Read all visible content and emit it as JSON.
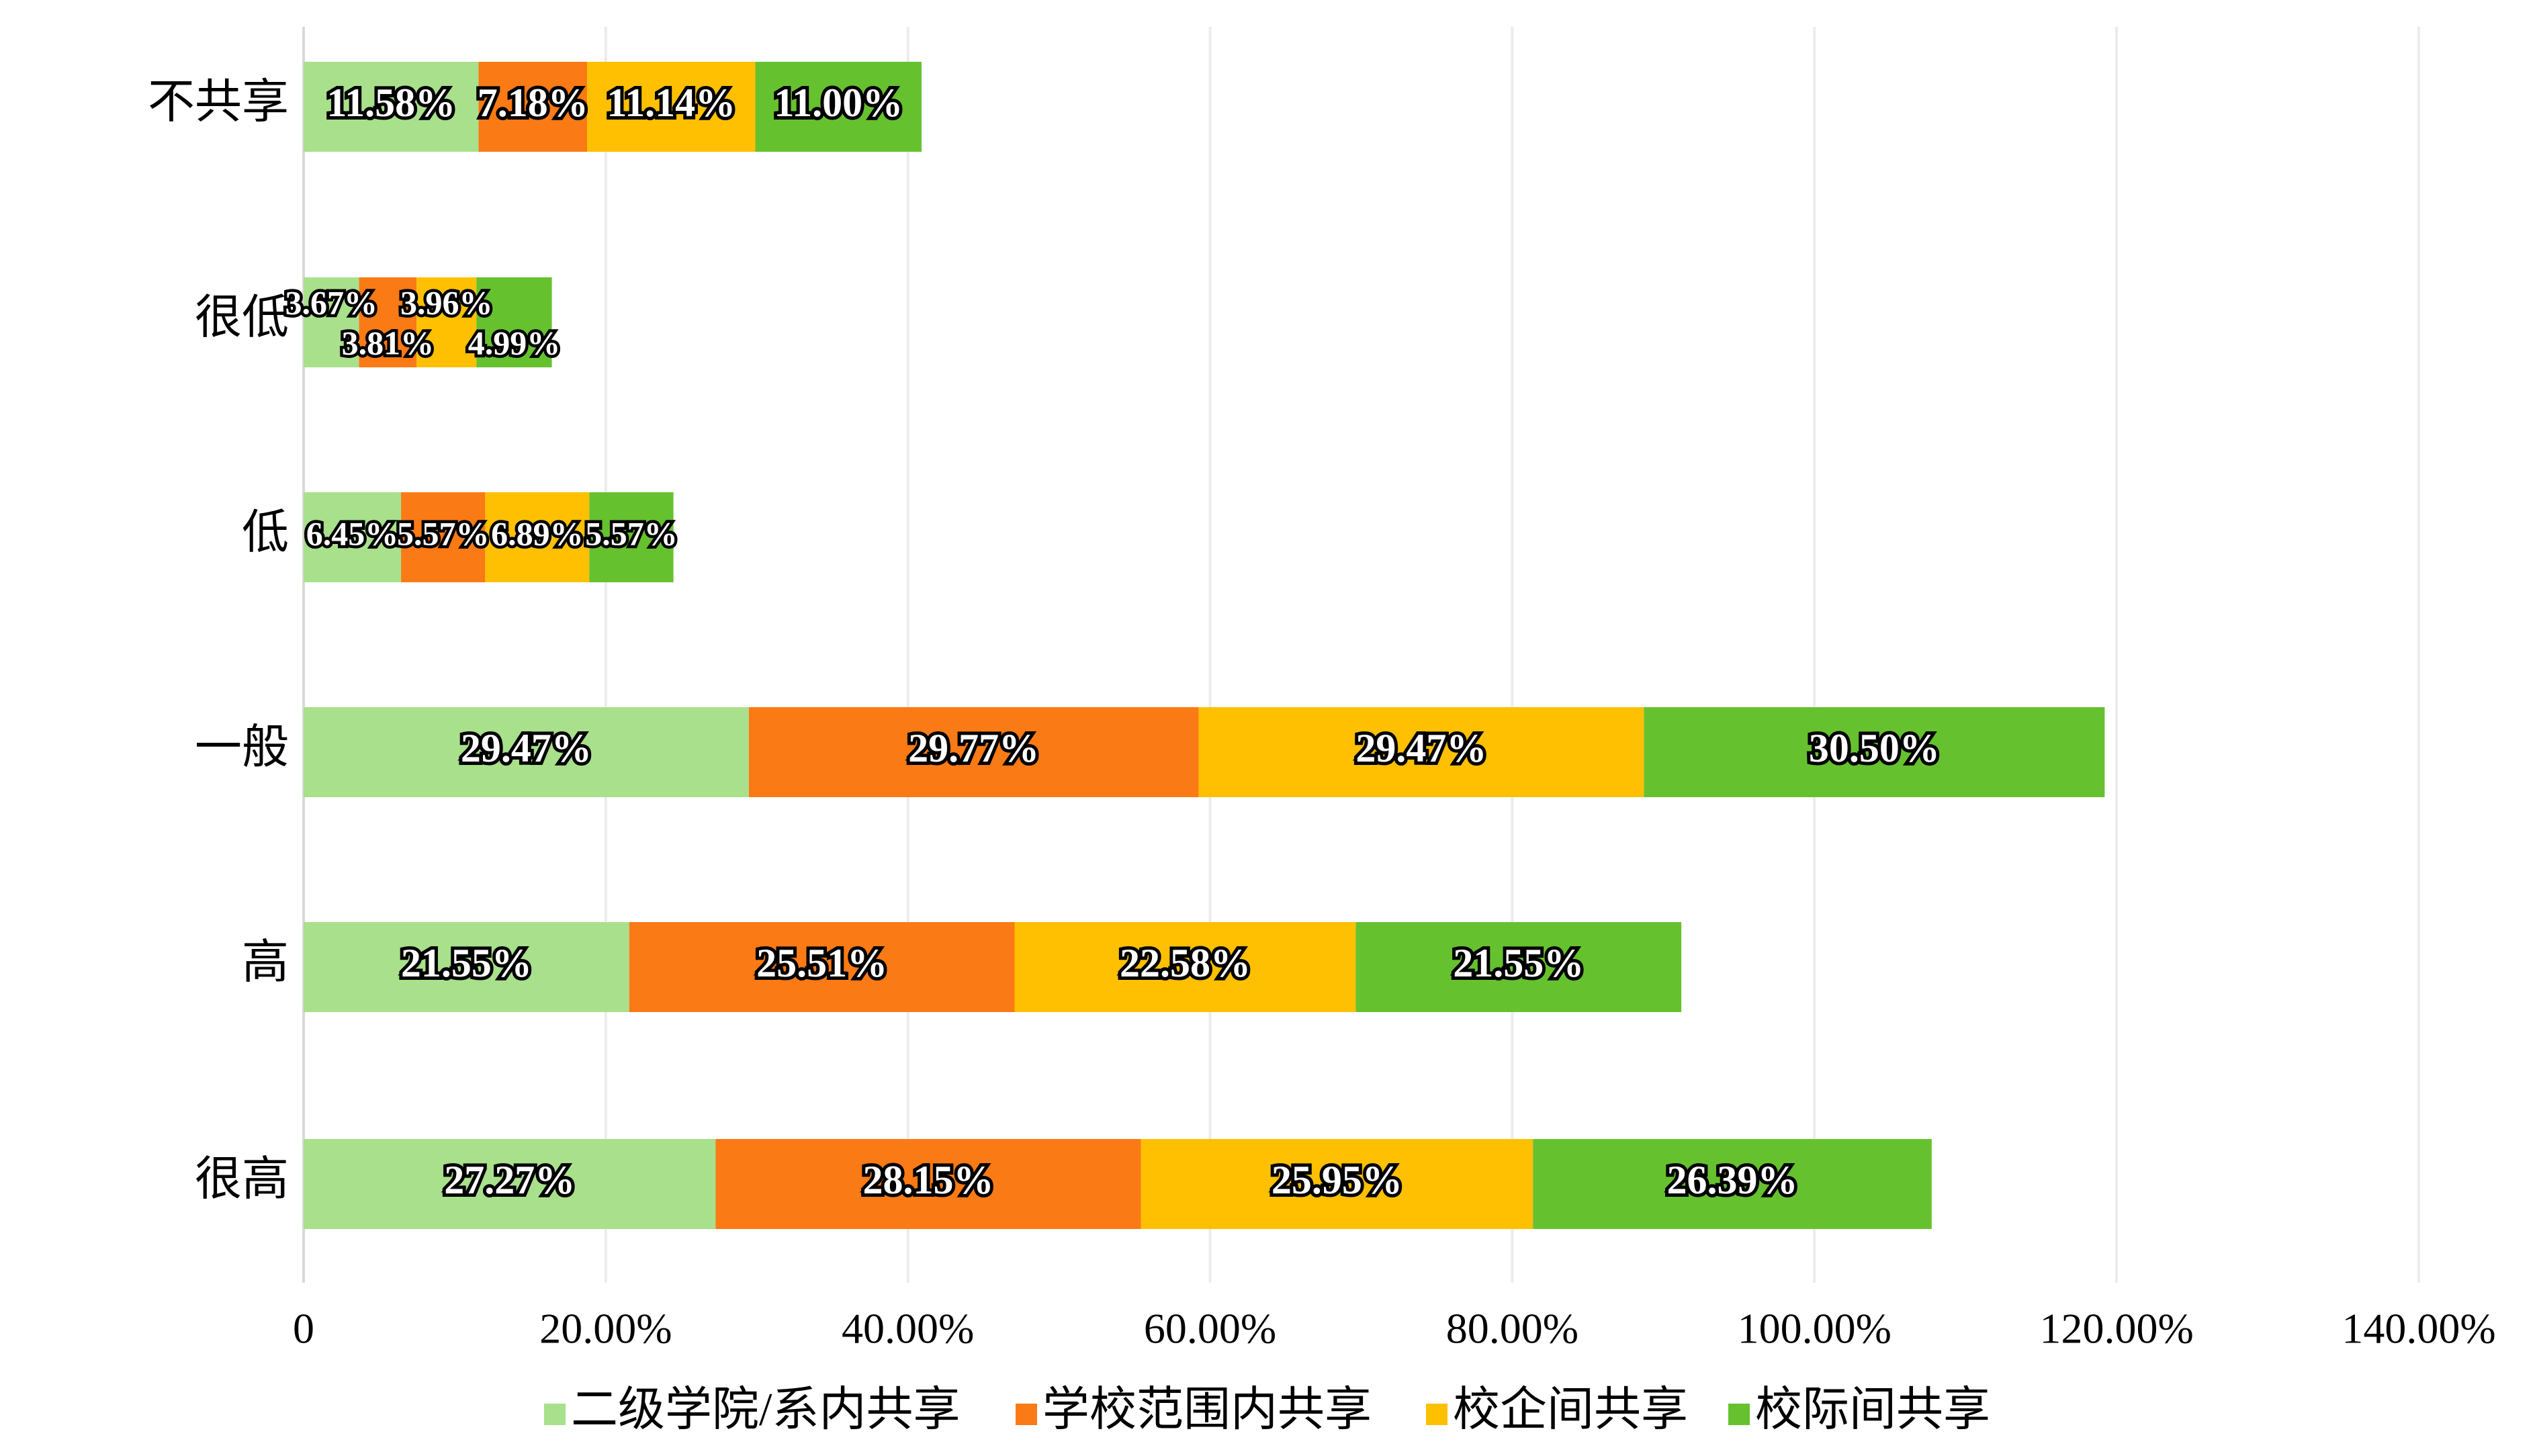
{
  "chart_data": {
    "type": "bar",
    "orientation": "horizontal",
    "stacked": true,
    "categories": [
      "不共享",
      "很低",
      "低",
      "一般",
      "高",
      "很高"
    ],
    "series": [
      {
        "name": "二级学院/系内共享",
        "color": "#A9E08C",
        "values": [
          11.58,
          3.67,
          6.45,
          29.47,
          21.55,
          27.27
        ],
        "labels": [
          "11.58%",
          "3.67%",
          "6.45%",
          "29.47%",
          "21.55%",
          "27.27%"
        ]
      },
      {
        "name": "学校范围内共享",
        "color": "#FA7A15",
        "values": [
          7.18,
          3.81,
          5.57,
          29.77,
          25.51,
          28.15
        ],
        "labels": [
          "7.18%",
          "3.81%",
          "5.57%",
          "29.77%",
          "25.51%",
          "28.15%"
        ]
      },
      {
        "name": "校企间共享",
        "color": "#FEC000",
        "values": [
          11.14,
          3.96,
          6.89,
          29.47,
          22.58,
          25.95
        ],
        "labels": [
          "11.14%",
          "3.96%",
          "6.89%",
          "29.47%",
          "22.58%",
          "25.95%"
        ]
      },
      {
        "name": "校际间共享",
        "color": "#66C12F",
        "values": [
          11.0,
          4.99,
          5.57,
          30.5,
          21.55,
          26.39
        ],
        "labels": [
          "11.00%",
          "4.99%",
          "5.57%",
          "30.50%",
          "21.55%",
          "26.39%"
        ]
      }
    ],
    "xlim": [
      0,
      140
    ],
    "xticks": [
      0,
      20,
      40,
      60,
      80,
      100,
      120,
      140
    ],
    "xtick_labels": [
      "0",
      "20.00%",
      "40.00%",
      "60.00%",
      "80.00%",
      "100.00%",
      "120.00%",
      "140.00%"
    ],
    "grid": true,
    "legend_position": "bottom",
    "title": "",
    "xlabel": "",
    "ylabel": ""
  }
}
